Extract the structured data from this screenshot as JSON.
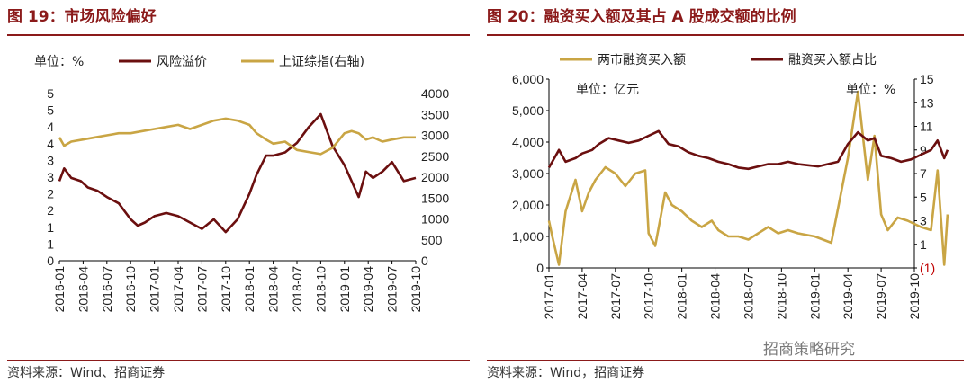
{
  "left": {
    "title": "图 19：市场风险偏好",
    "footer": "资料来源：Wind、招商证券"
  },
  "right": {
    "title": "图 20：融资买入额及其占 A 股成交额的比例",
    "footer": "资料来源：Wind，招商证券"
  },
  "watermark": "招商策略研究",
  "colors": {
    "brand": "#8b1a1a",
    "dark_red": "#6b0f0f",
    "gold": "#c9a544",
    "neg_label": "#c00000"
  },
  "chart_data": [
    {
      "type": "line",
      "unit_note": "单位：%",
      "x_ticks": [
        "2016-01",
        "2016-04",
        "2016-07",
        "2016-10",
        "2017-01",
        "2017-04",
        "2017-07",
        "2017-10",
        "2018-01",
        "2018-04",
        "2018-07",
        "2018-10",
        "2019-01",
        "2019-04",
        "2019-07",
        "2019-10"
      ],
      "y_left": {
        "ticks": [
          "0",
          "1",
          "1",
          "2",
          "2",
          "3",
          "3",
          "4",
          "4",
          "5",
          "5"
        ],
        "ylim": [
          0,
          5.25
        ]
      },
      "y_right": {
        "ticks": [
          "0",
          "500",
          "1000",
          "1500",
          "2000",
          "2500",
          "3000",
          "3500",
          "4000"
        ],
        "ylim": [
          0,
          4000
        ]
      },
      "series": [
        {
          "name": "风险溢价",
          "axis": "left",
          "color": "#6b0f0f",
          "x": [
            0,
            0.2,
            0.5,
            0.9,
            1.2,
            1.6,
            2.0,
            2.5,
            3.0,
            3.3,
            3.6,
            4.0,
            4.5,
            5.0,
            5.5,
            6.0,
            6.5,
            7.0,
            7.5,
            8.0,
            8.3,
            8.7,
            9.0,
            9.5,
            10.0,
            10.5,
            11.0,
            11.5,
            12.0,
            12.3,
            12.6,
            12.9,
            13.2,
            13.6,
            14.0,
            14.5,
            15.0
          ],
          "values": [
            2.5,
            2.9,
            2.6,
            2.5,
            2.3,
            2.2,
            2.0,
            1.8,
            1.3,
            1.1,
            1.2,
            1.4,
            1.5,
            1.4,
            1.2,
            1.0,
            1.3,
            0.9,
            1.3,
            2.1,
            2.7,
            3.3,
            3.3,
            3.4,
            3.7,
            4.2,
            4.6,
            3.6,
            3.0,
            2.5,
            2.0,
            2.8,
            2.6,
            2.8,
            3.1,
            2.5,
            2.6
          ]
        },
        {
          "name": "上证综指(右轴)",
          "axis": "right",
          "color": "#c9a544",
          "x": [
            0,
            0.2,
            0.5,
            1.0,
            1.5,
            2.0,
            2.5,
            3.0,
            3.5,
            4.0,
            4.5,
            5.0,
            5.5,
            6.0,
            6.5,
            7.0,
            7.5,
            8.0,
            8.3,
            8.7,
            9.0,
            9.5,
            10.0,
            10.5,
            11.0,
            11.5,
            12.0,
            12.3,
            12.6,
            12.9,
            13.2,
            13.6,
            14.0,
            14.5,
            15.0
          ],
          "values": [
            2950,
            2750,
            2850,
            2900,
            2950,
            3000,
            3050,
            3050,
            3100,
            3150,
            3200,
            3250,
            3150,
            3250,
            3350,
            3400,
            3350,
            3250,
            3050,
            2900,
            2800,
            2850,
            2650,
            2600,
            2550,
            2700,
            3050,
            3100,
            3050,
            2900,
            2950,
            2850,
            2900,
            2950,
            2950
          ]
        }
      ]
    },
    {
      "type": "line",
      "unit_note_left": "单位：亿元",
      "unit_note_right": "单位：%",
      "x_ticks": [
        "2017-01",
        "2017-04",
        "2017-07",
        "2017-10",
        "2018-01",
        "2018-04",
        "2018-07",
        "2018-10",
        "2019-01",
        "2019-04",
        "2019-07",
        "2019-10"
      ],
      "y_left": {
        "ticks": [
          "0",
          "1,000",
          "2,000",
          "3,000",
          "4,000",
          "5,000",
          "6,000"
        ],
        "ylim": [
          0,
          6000
        ]
      },
      "y_right": {
        "ticks": [
          "(1)",
          "1",
          "3",
          "5",
          "7",
          "9",
          "11",
          "13",
          "15"
        ],
        "ylim": [
          -1,
          15
        ]
      },
      "series": [
        {
          "name": "两市融资买入额",
          "axis": "left",
          "color": "#c9a544",
          "x": [
            0,
            0.1,
            0.3,
            0.5,
            0.8,
            1.0,
            1.2,
            1.4,
            1.7,
            2.0,
            2.3,
            2.6,
            2.9,
            3.0,
            3.2,
            3.5,
            3.7,
            4.0,
            4.3,
            4.6,
            4.9,
            5.1,
            5.4,
            5.7,
            6.0,
            6.3,
            6.6,
            6.9,
            7.2,
            7.5,
            8.0,
            8.5,
            9.0,
            9.3,
            9.6,
            9.8,
            10.0,
            10.2,
            10.5,
            10.8,
            11.0,
            11.2,
            11.5,
            11.7,
            11.9,
            12.0
          ],
          "values": [
            1500,
            1000,
            100,
            1800,
            2800,
            1800,
            2400,
            2800,
            3200,
            3000,
            2600,
            3000,
            3100,
            1100,
            700,
            2400,
            2000,
            1800,
            1500,
            1300,
            1500,
            1200,
            1000,
            1000,
            900,
            1100,
            1300,
            1100,
            1200,
            1100,
            1000,
            800,
            3500,
            5600,
            2800,
            4200,
            1700,
            1200,
            1600,
            1500,
            1400,
            1300,
            1200,
            3100,
            100,
            1700
          ]
        },
        {
          "name": "融资买入额占比",
          "axis": "right",
          "color": "#6b0f0f",
          "x": [
            0,
            0.1,
            0.3,
            0.5,
            0.8,
            1.0,
            1.3,
            1.5,
            1.8,
            2.1,
            2.4,
            2.7,
            3.0,
            3.3,
            3.6,
            3.9,
            4.2,
            4.5,
            4.8,
            5.1,
            5.4,
            5.7,
            6.0,
            6.3,
            6.6,
            6.9,
            7.2,
            7.5,
            7.8,
            8.1,
            8.4,
            8.7,
            9.0,
            9.3,
            9.6,
            9.8,
            10.0,
            10.3,
            10.6,
            10.9,
            11.2,
            11.5,
            11.7,
            11.9,
            12.0
          ],
          "values": [
            7.5,
            8.0,
            9.0,
            8.0,
            8.3,
            8.7,
            9.0,
            9.5,
            10.0,
            9.8,
            9.6,
            9.8,
            10.2,
            10.6,
            9.5,
            9.3,
            8.8,
            8.5,
            8.3,
            8.0,
            7.8,
            7.5,
            7.4,
            7.6,
            7.8,
            7.8,
            8.0,
            7.8,
            7.7,
            7.6,
            7.8,
            8.0,
            9.5,
            10.5,
            9.8,
            10.0,
            8.5,
            8.3,
            8.0,
            8.2,
            8.6,
            9.0,
            9.8,
            8.3,
            9.0
          ]
        }
      ]
    }
  ]
}
